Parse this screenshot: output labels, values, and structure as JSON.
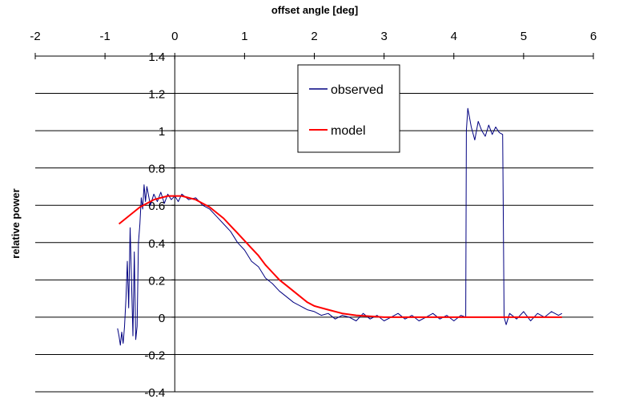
{
  "chart_data": {
    "type": "line",
    "xlabel": "offset angle [deg]",
    "ylabel": "relative power",
    "xlim": [
      -2,
      6
    ],
    "ylim": [
      -0.4,
      1.4
    ],
    "x_ticks": [
      "-2",
      "-1",
      "0",
      "1",
      "2",
      "3",
      "4",
      "5",
      "6"
    ],
    "y_ticks": [
      "1.4",
      "1.2",
      "1",
      "0.8",
      "0.6",
      "0.4",
      "0.2",
      "0",
      "-0.2",
      "-0.4"
    ],
    "x_axis_position": "top",
    "grid": "horizontal",
    "legend": {
      "position": "top-center",
      "entries": [
        "observed",
        "model"
      ]
    },
    "series": [
      {
        "name": "observed",
        "color": "#000080",
        "x": [
          -0.82,
          -0.8,
          -0.78,
          -0.76,
          -0.74,
          -0.72,
          -0.7,
          -0.68,
          -0.66,
          -0.64,
          -0.62,
          -0.6,
          -0.58,
          -0.56,
          -0.54,
          -0.52,
          -0.5,
          -0.48,
          -0.46,
          -0.44,
          -0.42,
          -0.4,
          -0.35,
          -0.3,
          -0.25,
          -0.2,
          -0.15,
          -0.1,
          -0.05,
          0.0,
          0.05,
          0.1,
          0.2,
          0.3,
          0.4,
          0.5,
          0.6,
          0.7,
          0.8,
          0.9,
          1.0,
          1.1,
          1.2,
          1.3,
          1.4,
          1.5,
          1.6,
          1.7,
          1.8,
          1.9,
          2.0,
          2.1,
          2.2,
          2.3,
          2.4,
          2.5,
          2.6,
          2.7,
          2.8,
          2.9,
          3.0,
          3.1,
          3.2,
          3.3,
          3.4,
          3.5,
          3.6,
          3.7,
          3.8,
          3.9,
          4.0,
          4.1,
          4.17,
          4.18,
          4.2,
          4.25,
          4.3,
          4.35,
          4.4,
          4.45,
          4.5,
          4.55,
          4.6,
          4.65,
          4.7,
          4.71,
          4.72,
          4.75,
          4.8,
          4.9,
          5.0,
          5.1,
          5.2,
          5.3,
          5.4,
          5.5,
          5.55
        ],
        "values": [
          -0.06,
          -0.1,
          -0.15,
          -0.08,
          -0.14,
          -0.05,
          0.1,
          0.3,
          0.05,
          0.48,
          0.2,
          -0.1,
          0.35,
          -0.12,
          -0.05,
          0.4,
          0.5,
          0.64,
          0.58,
          0.71,
          0.62,
          0.7,
          0.6,
          0.66,
          0.62,
          0.67,
          0.61,
          0.66,
          0.63,
          0.65,
          0.62,
          0.66,
          0.63,
          0.64,
          0.6,
          0.58,
          0.54,
          0.5,
          0.46,
          0.4,
          0.36,
          0.3,
          0.27,
          0.21,
          0.18,
          0.14,
          0.11,
          0.08,
          0.06,
          0.04,
          0.03,
          0.01,
          0.02,
          -0.01,
          0.01,
          0.0,
          -0.02,
          0.02,
          -0.01,
          0.01,
          -0.02,
          0.0,
          0.02,
          -0.01,
          0.01,
          -0.02,
          0.0,
          0.02,
          -0.01,
          0.01,
          -0.02,
          0.01,
          0.0,
          1.0,
          1.12,
          1.02,
          0.95,
          1.05,
          1.0,
          0.97,
          1.03,
          0.98,
          1.02,
          0.99,
          0.98,
          0.5,
          0.0,
          -0.04,
          0.02,
          -0.01,
          0.03,
          -0.02,
          0.02,
          0.0,
          0.03,
          0.01,
          0.02
        ]
      },
      {
        "name": "model",
        "color": "#ff0000",
        "x": [
          -0.8,
          -0.7,
          -0.6,
          -0.5,
          -0.4,
          -0.3,
          -0.2,
          -0.1,
          0.0,
          0.1,
          0.2,
          0.3,
          0.4,
          0.5,
          0.6,
          0.7,
          0.8,
          0.9,
          1.0,
          1.1,
          1.2,
          1.3,
          1.4,
          1.5,
          1.6,
          1.7,
          1.8,
          1.9,
          2.0,
          2.2,
          2.4,
          2.6,
          2.8,
          3.0,
          3.2,
          3.4,
          3.6,
          3.8,
          4.0,
          4.5,
          5.0,
          5.55
        ],
        "values": [
          0.5,
          0.53,
          0.56,
          0.59,
          0.61,
          0.63,
          0.64,
          0.65,
          0.65,
          0.65,
          0.64,
          0.63,
          0.61,
          0.59,
          0.56,
          0.53,
          0.49,
          0.45,
          0.41,
          0.37,
          0.33,
          0.28,
          0.24,
          0.2,
          0.17,
          0.14,
          0.11,
          0.08,
          0.06,
          0.04,
          0.02,
          0.01,
          0.005,
          0.0,
          0.0,
          0.0,
          0.0,
          0.0,
          0.0,
          0.0,
          0.0,
          0.0
        ]
      }
    ]
  }
}
